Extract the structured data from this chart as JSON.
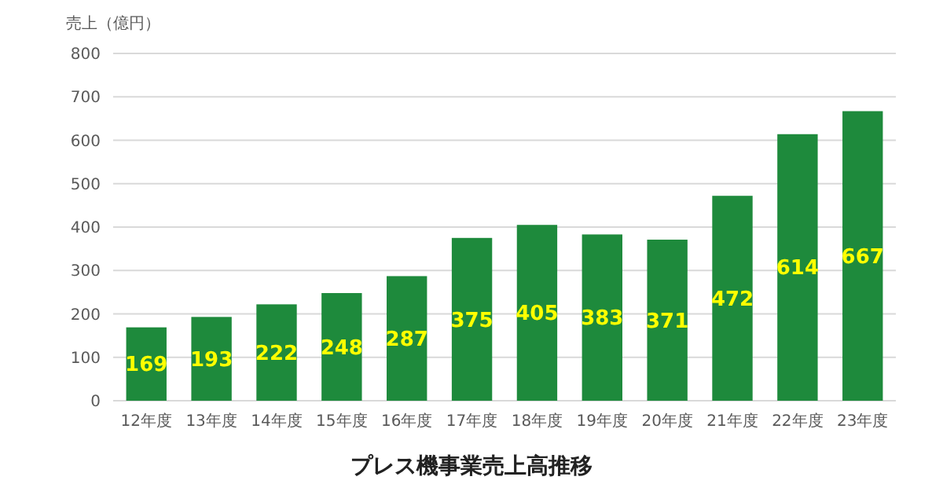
{
  "chart_data": {
    "type": "bar",
    "title": "プレス機事業売上高推移",
    "ylabel": "売上（億円）",
    "categories": [
      "12年度",
      "13年度",
      "14年度",
      "15年度",
      "16年度",
      "17年度",
      "18年度",
      "19年度",
      "20年度",
      "21年度",
      "22年度",
      "23年度"
    ],
    "values": [
      169,
      193,
      222,
      248,
      287,
      375,
      405,
      383,
      371,
      472,
      614,
      667
    ],
    "color": "#1e8a3c",
    "ylim": [
      0,
      800
    ],
    "yticks": [
      0,
      100,
      200,
      300,
      400,
      500,
      600,
      700,
      800
    ],
    "grid": "y",
    "data_labels": true
  }
}
